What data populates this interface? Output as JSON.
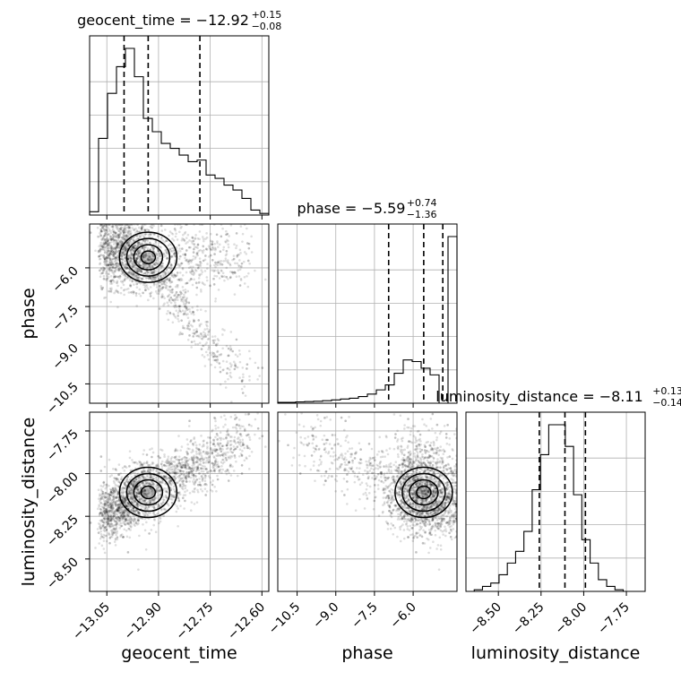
{
  "chart_data": {
    "type": "corner",
    "parameters": [
      "geocent_time",
      "phase",
      "luminosity_distance"
    ],
    "panel_titles": [
      {
        "param": "geocent_time",
        "text": "geocent_time = −12.92",
        "sup": "+0.15",
        "sub": "−0.08"
      },
      {
        "param": "phase",
        "text": "phase = −5.59",
        "sup": "+0.74",
        "sub": "−1.36"
      },
      {
        "param": "luminosity_distance",
        "text": "luminosity_distance = −8.11",
        "sup": "+0.13",
        "sub": "−0.14"
      }
    ],
    "axis_labels": {
      "geocent_time": "geocent_time",
      "phase": "phase",
      "luminosity_distance": "luminosity_distance"
    },
    "ranges": {
      "geocent_time": [
        -13.1,
        -12.58
      ],
      "phase": [
        -11.25,
        -4.3
      ],
      "luminosity_distance": [
        -8.69,
        -7.64
      ]
    },
    "ticks": {
      "geocent_time": [
        -13.05,
        -12.9,
        -12.75,
        -12.6
      ],
      "phase": [
        -10.5,
        -9.0,
        -7.5,
        -6.0
      ],
      "luminosity_distance": [
        -8.5,
        -8.25,
        -8.0,
        -7.75
      ]
    },
    "tick_labels": {
      "geocent_time": [
        "−13.05",
        "−12.90",
        "−12.75",
        "−12.60"
      ],
      "phase": [
        "−10.5",
        "−9.0",
        "−7.5",
        "−6.0"
      ],
      "luminosity_distance": [
        "−8.50",
        "−8.25",
        "−8.00",
        "−7.75"
      ]
    },
    "quantiles": {
      "geocent_time": [
        -13.0,
        -12.93,
        -12.78
      ],
      "phase": [
        -6.95,
        -5.59,
        -4.85
      ],
      "luminosity_distance": [
        -8.26,
        -8.11,
        -7.99
      ]
    },
    "histograms": {
      "geocent_time": {
        "bin_edges": [
          -13.1,
          -13.074,
          -13.048,
          -13.022,
          -12.996,
          -12.97,
          -12.944,
          -12.918,
          -12.892,
          -12.866,
          -12.84,
          -12.814,
          -12.788,
          -12.762,
          -12.736,
          -12.71,
          -12.684,
          -12.658,
          -12.632,
          -12.606,
          -12.58
        ],
        "counts": [
          0.02,
          0.46,
          0.73,
          0.89,
          1.0,
          0.83,
          0.58,
          0.5,
          0.43,
          0.4,
          0.36,
          0.32,
          0.33,
          0.24,
          0.22,
          0.18,
          0.15,
          0.1,
          0.03,
          0.01
        ]
      },
      "phase": {
        "bin_edges": [
          -11.25,
          -10.9025,
          -10.555,
          -10.2075,
          -9.86,
          -9.5125,
          -9.165,
          -8.8175,
          -8.47,
          -8.1225,
          -7.775,
          -7.4275,
          -7.08,
          -6.7325,
          -6.385,
          -6.0375,
          -5.69,
          -5.3425,
          -4.995,
          -4.6475,
          -4.3
        ],
        "counts": [
          0.005,
          0.005,
          0.008,
          0.01,
          0.012,
          0.015,
          0.02,
          0.025,
          0.03,
          0.04,
          0.055,
          0.08,
          0.11,
          0.18,
          0.26,
          0.25,
          0.21,
          0.17,
          0.0,
          1.0
        ]
      },
      "luminosity_distance": {
        "bin_edges": [
          -8.69,
          -8.6415,
          -8.593,
          -8.5445,
          -8.496,
          -8.4475,
          -8.399,
          -8.3505,
          -8.302,
          -8.2535,
          -8.205,
          -8.1565,
          -8.108,
          -8.0595,
          -8.011,
          -7.9625,
          -7.914,
          -7.8655,
          -7.817,
          -7.7685,
          -7.72
        ],
        "counts": [
          0.0,
          0.01,
          0.03,
          0.05,
          0.1,
          0.17,
          0.24,
          0.36,
          0.61,
          0.82,
          1.0,
          1.0,
          0.87,
          0.58,
          0.31,
          0.17,
          0.07,
          0.03,
          0.01,
          0.0
        ]
      }
    },
    "contour_levels_sigma": [
      0.5,
      1.0,
      1.5,
      2.0
    ],
    "grid": true,
    "colors": {
      "line": "#000000",
      "grid": "#b0b0b0",
      "samples": "#000000"
    }
  }
}
